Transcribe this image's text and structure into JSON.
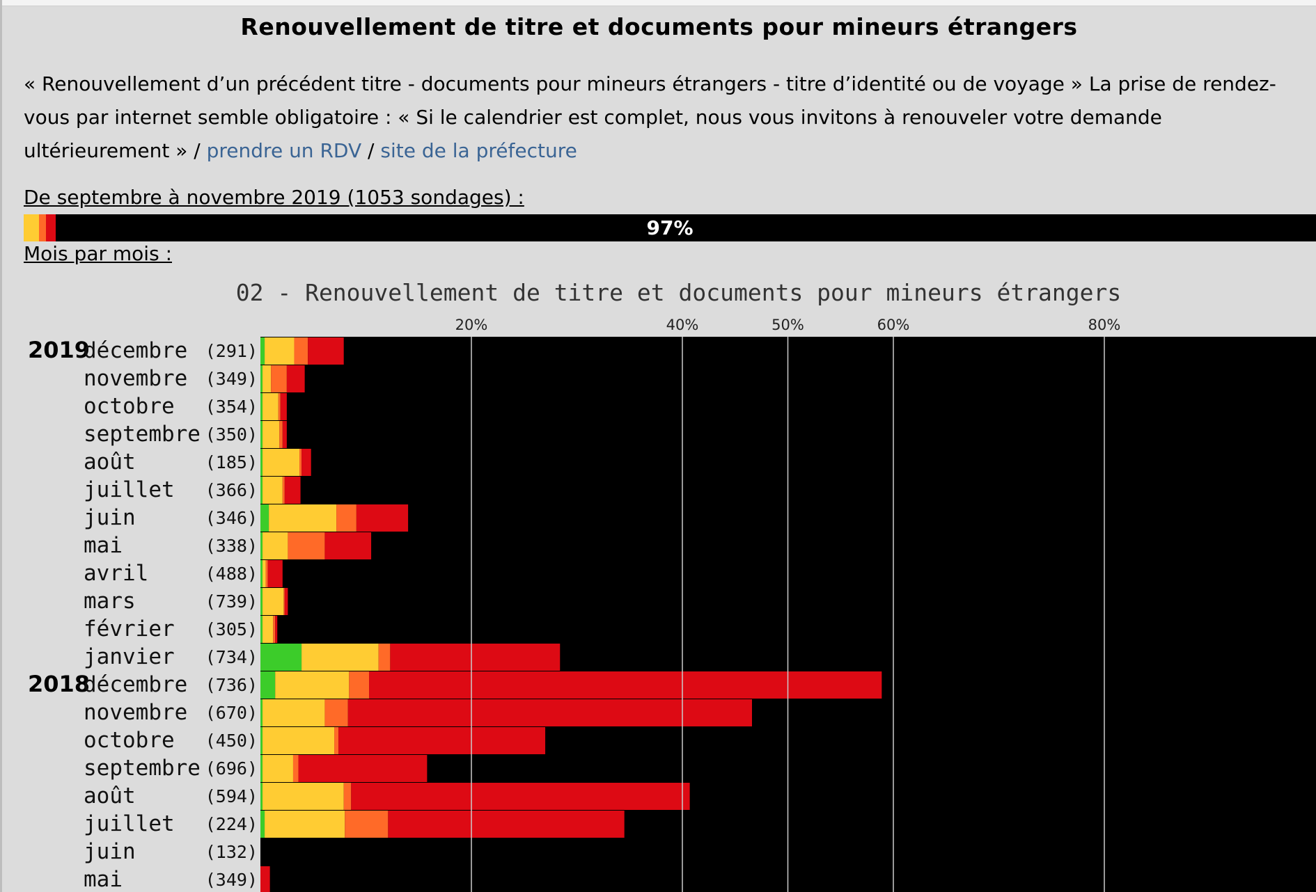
{
  "page": {
    "heading": "Renouvellement de titre et documents pour mineurs étrangers",
    "description": "« Renouvellement d’un précédent titre - documents pour mineurs étrangers - titre d’identité ou de voyage » La prise de rendez-vous par internet semble obligatoire : « Si le calendrier est complet, nous vous invitons à renouveler votre demande ultérieurement » /",
    "link_rdv": "prendre un RDV",
    "separator": "/",
    "link_prefecture": "site de la préfecture",
    "summary_label": "De septembre à novembre 2019 (1053 sondages) :",
    "summary_percent": "97%",
    "summary_segments": [
      {
        "color": "#ffcc33",
        "share": 1.2
      },
      {
        "color": "#ff6a28",
        "share": 0.5
      },
      {
        "color": "#dd0a14",
        "share": 0.8
      }
    ],
    "month_label": "Mois par mois :"
  },
  "colors": {
    "green": "#3ccc2a",
    "yellow": "#ffcc33",
    "orange": "#ff6a28",
    "red": "#dd0a14",
    "black": "#000000",
    "grid": "#cccccc"
  },
  "chart_data": {
    "type": "bar",
    "orientation": "horizontal",
    "stacked": true,
    "title": "02 - Renouvellement de titre et documents pour mineurs étrangers",
    "xlim": [
      0,
      100
    ],
    "ticks": [
      20,
      40,
      50,
      60,
      80
    ],
    "tick_labels": [
      "20%",
      "40%",
      "50%",
      "60%",
      "80%"
    ],
    "series_order": [
      "green",
      "yellow",
      "orange",
      "red"
    ],
    "rows": [
      {
        "year": "2019",
        "month": "décembre",
        "count": "(291)",
        "green": 0.4,
        "yellow": 2.8,
        "orange": 1.3,
        "red": 3.4
      },
      {
        "year": "",
        "month": "novembre",
        "count": "(349)",
        "green": 0.2,
        "yellow": 0.8,
        "orange": 1.5,
        "red": 1.7
      },
      {
        "year": "",
        "month": "octobre",
        "count": "(354)",
        "green": 0.2,
        "yellow": 1.5,
        "orange": 0.2,
        "red": 0.6
      },
      {
        "year": "",
        "month": "septembre",
        "count": "(350)",
        "green": 0.2,
        "yellow": 1.6,
        "orange": 0.3,
        "red": 0.4
      },
      {
        "year": "",
        "month": "août",
        "count": "(185)",
        "green": 0.2,
        "yellow": 3.5,
        "orange": 0.2,
        "red": 0.9
      },
      {
        "year": "",
        "month": "juillet",
        "count": "(366)",
        "green": 0.2,
        "yellow": 1.9,
        "orange": 0.2,
        "red": 1.5
      },
      {
        "year": "",
        "month": "juin",
        "count": "(346)",
        "green": 0.8,
        "yellow": 6.4,
        "orange": 1.9,
        "red": 4.9
      },
      {
        "year": "",
        "month": "mai",
        "count": "(338)",
        "green": 0.2,
        "yellow": 2.4,
        "orange": 3.5,
        "red": 4.4
      },
      {
        "year": "",
        "month": "avril",
        "count": "(488)",
        "green": 0.2,
        "yellow": 0.3,
        "orange": 0.2,
        "red": 1.4
      },
      {
        "year": "",
        "month": "mars",
        "count": "(739)",
        "green": 0.2,
        "yellow": 2.0,
        "orange": 0.1,
        "red": 0.3
      },
      {
        "year": "",
        "month": "février",
        "count": "(305)",
        "green": 0.2,
        "yellow": 1.0,
        "orange": 0.2,
        "red": 0.2
      },
      {
        "year": "",
        "month": "janvier",
        "count": "(734)",
        "green": 3.9,
        "yellow": 7.3,
        "orange": 1.1,
        "red": 16.1
      },
      {
        "year": "2018",
        "month": "décembre",
        "count": "(736)",
        "green": 1.4,
        "yellow": 7.0,
        "orange": 1.9,
        "red": 48.6
      },
      {
        "year": "",
        "month": "novembre",
        "count": "(670)",
        "green": 0.2,
        "yellow": 5.9,
        "orange": 2.2,
        "red": 38.3
      },
      {
        "year": "",
        "month": "octobre",
        "count": "(450)",
        "green": 0.2,
        "yellow": 6.8,
        "orange": 0.4,
        "red": 19.6
      },
      {
        "year": "",
        "month": "septembre",
        "count": "(696)",
        "green": 0.2,
        "yellow": 2.9,
        "orange": 0.5,
        "red": 12.2
      },
      {
        "year": "",
        "month": "août",
        "count": "(594)",
        "green": 0.2,
        "yellow": 7.7,
        "orange": 0.7,
        "red": 32.1
      },
      {
        "year": "",
        "month": "juillet",
        "count": "(224)",
        "green": 0.4,
        "yellow": 7.6,
        "orange": 4.1,
        "red": 22.4
      },
      {
        "year": "",
        "month": "juin",
        "count": "(132)",
        "green": 0,
        "yellow": 0,
        "orange": 0,
        "red": 0
      },
      {
        "year": "",
        "month": "mai",
        "count": "(349)",
        "green": 0,
        "yellow": 0,
        "orange": 0,
        "red": 0.9
      }
    ]
  }
}
